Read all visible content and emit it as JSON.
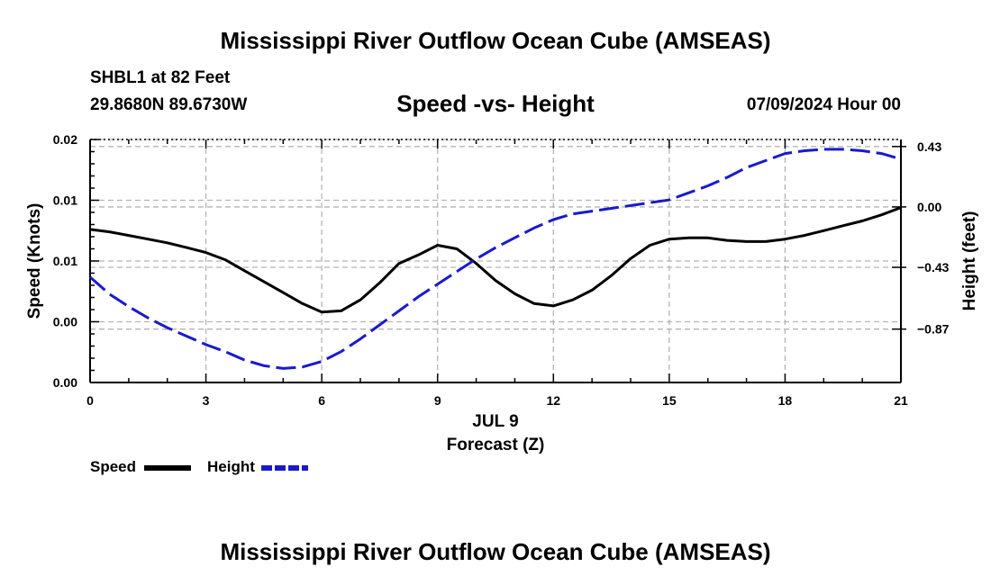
{
  "header": {
    "title": "Mississippi River Outflow Ocean Cube (AMSEAS)",
    "station": "SHBL1 at 82 Feet",
    "coords": "29.8680N  89.6730W",
    "subtitle": "Speed -vs- Height",
    "datetime": "07/09/2024 Hour 00"
  },
  "footer": {
    "title": "Mississippi River Outflow Ocean Cube (AMSEAS)"
  },
  "legend": {
    "speed_label": "Speed",
    "height_label": "Height"
  },
  "colors": {
    "speed": "#000000",
    "height": "#1a1acc",
    "grid": "#b4b4b4"
  },
  "chart_data": {
    "type": "line",
    "title": "Speed -vs- Height",
    "xlabel": "Forecast (Z)",
    "xlabel_date": "JUL 9",
    "ylabel": "Speed (Knots)",
    "ylabel_right": "Height (feet)",
    "xlim": [
      0,
      21
    ],
    "ylim": [
      0,
      0.02
    ],
    "ylim_right": [
      -1.25,
      0.48
    ],
    "x_ticks": [
      0,
      3,
      6,
      9,
      12,
      15,
      18,
      21
    ],
    "x_tick_labels": [
      "0",
      "3",
      "6",
      "9",
      "12",
      "15",
      "18",
      "21"
    ],
    "y_ticks": [
      0,
      0.005,
      0.01,
      0.015,
      0.02
    ],
    "y_tick_labels": [
      "0.00",
      "0.00",
      "0.01",
      "0.01",
      "0.02"
    ],
    "y2_ticks": [
      0.43,
      0.0,
      -0.43,
      -0.87
    ],
    "y2_tick_labels": [
      "0.43",
      "0.00",
      "−0.43",
      "−0.87"
    ],
    "grid": true,
    "legend_position": "bottom-left",
    "series": [
      {
        "name": "Speed",
        "axis": "left",
        "style": "solid",
        "x": [
          0,
          0.5,
          1,
          1.5,
          2,
          2.5,
          3,
          3.5,
          4,
          4.5,
          5,
          5.5,
          6,
          6.5,
          7,
          7.5,
          8,
          8.5,
          9,
          9.5,
          10,
          10.5,
          11,
          11.5,
          12,
          12.5,
          13,
          13.5,
          14,
          14.5,
          15,
          15.5,
          16,
          16.5,
          17,
          17.5,
          18,
          18.5,
          19,
          19.5,
          20,
          20.5,
          21
        ],
        "values": [
          0.0126,
          0.0124,
          0.0121,
          0.0118,
          0.0115,
          0.0111,
          0.0107,
          0.0101,
          0.0092,
          0.0083,
          0.0074,
          0.0065,
          0.0058,
          0.0059,
          0.0068,
          0.0082,
          0.0098,
          0.0105,
          0.0113,
          0.011,
          0.0098,
          0.0084,
          0.0073,
          0.0065,
          0.0063,
          0.0068,
          0.0076,
          0.0088,
          0.0102,
          0.0113,
          0.0118,
          0.0119,
          0.0119,
          0.0117,
          0.0116,
          0.0116,
          0.0118,
          0.0121,
          0.0125,
          0.0129,
          0.0133,
          0.0138,
          0.0144
        ]
      },
      {
        "name": "Height",
        "axis": "right",
        "style": "dashed",
        "x": [
          0,
          0.5,
          1,
          1.5,
          2,
          2.5,
          3,
          3.5,
          4,
          4.5,
          5,
          5.5,
          6,
          6.5,
          7,
          7.5,
          8,
          8.5,
          9,
          9.5,
          10,
          10.5,
          11,
          11.5,
          12,
          12.5,
          13,
          13.5,
          14,
          14.5,
          15,
          15.5,
          16,
          16.5,
          17,
          17.5,
          18,
          18.5,
          19,
          19.5,
          20,
          20.5,
          21
        ],
        "values": [
          -0.5,
          -0.62,
          -0.71,
          -0.79,
          -0.86,
          -0.92,
          -0.98,
          -1.03,
          -1.09,
          -1.13,
          -1.15,
          -1.14,
          -1.1,
          -1.03,
          -0.94,
          -0.84,
          -0.74,
          -0.64,
          -0.55,
          -0.46,
          -0.37,
          -0.29,
          -0.22,
          -0.15,
          -0.09,
          -0.05,
          -0.03,
          -0.01,
          0.01,
          0.03,
          0.05,
          0.1,
          0.15,
          0.21,
          0.28,
          0.33,
          0.38,
          0.4,
          0.41,
          0.41,
          0.4,
          0.38,
          0.34
        ]
      }
    ]
  }
}
